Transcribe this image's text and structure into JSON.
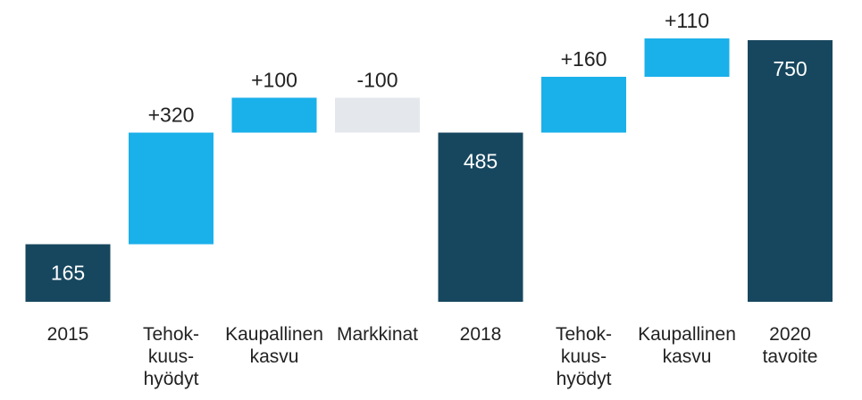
{
  "chart_data": {
    "type": "waterfall",
    "categories": [
      [
        "2015"
      ],
      [
        "Tehok-",
        "kuus-",
        "hyödyt"
      ],
      [
        "Kaupallinen",
        "kasvu"
      ],
      [
        "Markkinat"
      ],
      [
        "2018"
      ],
      [
        "Tehok-",
        "kuus-",
        "hyödyt"
      ],
      [
        "Kaupallinen",
        "kasvu"
      ],
      [
        "2020",
        "tavoite"
      ]
    ],
    "values": [
      165,
      320,
      100,
      -100,
      485,
      160,
      110,
      750
    ],
    "value_labels": [
      "165",
      "+320",
      "+100",
      "-100",
      "485",
      "+160",
      "+110",
      "750"
    ],
    "measures": [
      "total",
      "relative",
      "relative",
      "relative",
      "total",
      "relative",
      "relative",
      "total"
    ],
    "colors": {
      "total": "#17475f",
      "increase": "#1ab0ea",
      "decrease": "#e4e8ed"
    },
    "ylim": [
      0,
      750
    ]
  }
}
